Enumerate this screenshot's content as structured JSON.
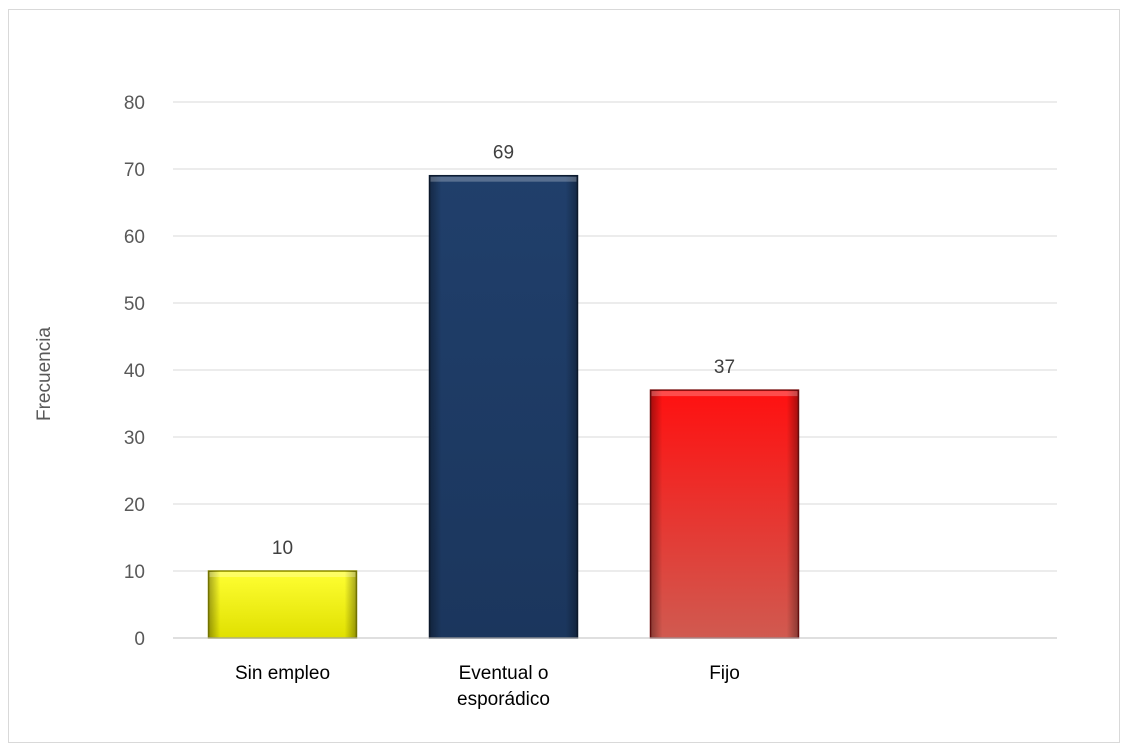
{
  "chart_data": {
    "type": "bar",
    "title": "",
    "xlabel": "",
    "ylabel": "Frecuencia",
    "categories": [
      [
        "Sin empleo"
      ],
      [
        "Eventual o",
        "esporádico"
      ],
      [
        "Fijo"
      ],
      [
        ""
      ]
    ],
    "values": [
      10,
      69,
      37,
      null
    ],
    "data_labels": [
      "10",
      "69",
      "37",
      ""
    ],
    "ylim": [
      0,
      80
    ],
    "yticks": [
      0,
      10,
      20,
      30,
      40,
      50,
      60,
      70,
      80
    ],
    "grid": true,
    "legend": "none",
    "colors": {
      "bars": [
        {
          "top": "#ffff33",
          "bottom": "#e0e000",
          "edge": "#8a8a00"
        },
        {
          "top": "#203f6b",
          "bottom": "#1b365d",
          "edge": "#0e1d33"
        },
        {
          "top": "#ff1010",
          "bottom": "#d05a50",
          "edge": "#7a1010"
        }
      ],
      "grid": "#d9d9d9",
      "axis": "#bfbfbf"
    }
  }
}
